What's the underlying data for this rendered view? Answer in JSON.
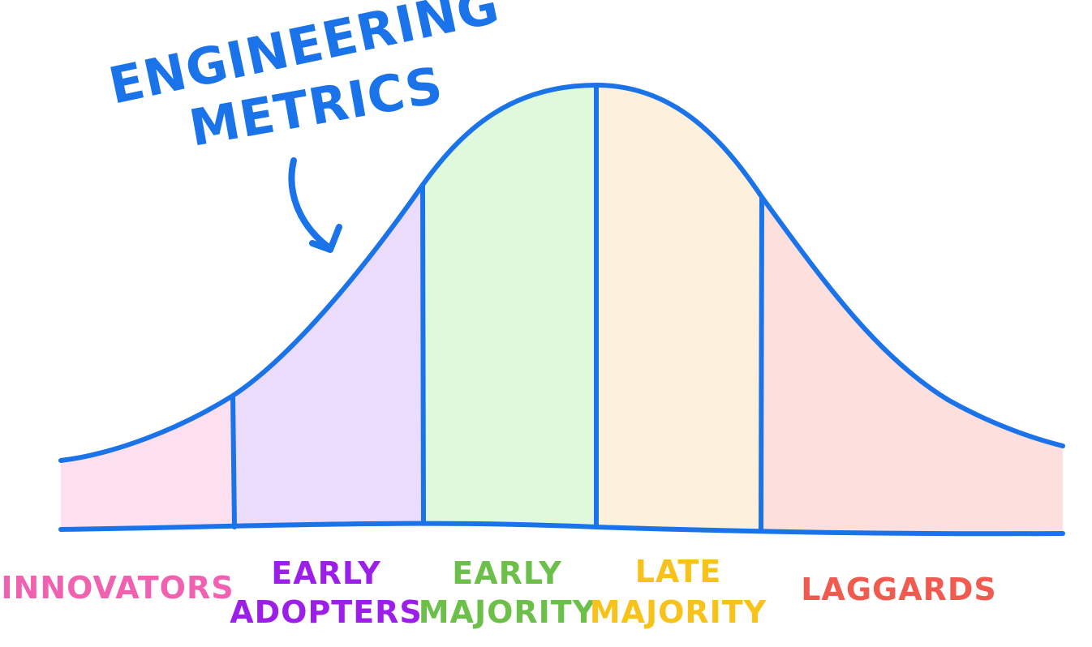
{
  "annotation": {
    "title_lines": [
      "Engineering",
      "Metrics"
    ],
    "color": "#1a73e8"
  },
  "curve": {
    "stroke_color": "#1a73e8"
  },
  "segments": [
    {
      "label_lines": [
        "Innovators"
      ],
      "fill": "#fde0ef",
      "label_color": "#f062b0"
    },
    {
      "label_lines": [
        "Early",
        "Adopters"
      ],
      "fill": "#ecdcfb",
      "label_color": "#9b1fe8"
    },
    {
      "label_lines": [
        "Early",
        "Majority"
      ],
      "fill": "#dff9dc",
      "label_color": "#6cc04a"
    },
    {
      "label_lines": [
        "Late",
        "Majority"
      ],
      "fill": "#fdf0dc",
      "label_color": "#f7c21a"
    },
    {
      "label_lines": [
        "Laggards"
      ],
      "fill": "#fde0de",
      "label_color": "#f05a4f"
    }
  ]
}
